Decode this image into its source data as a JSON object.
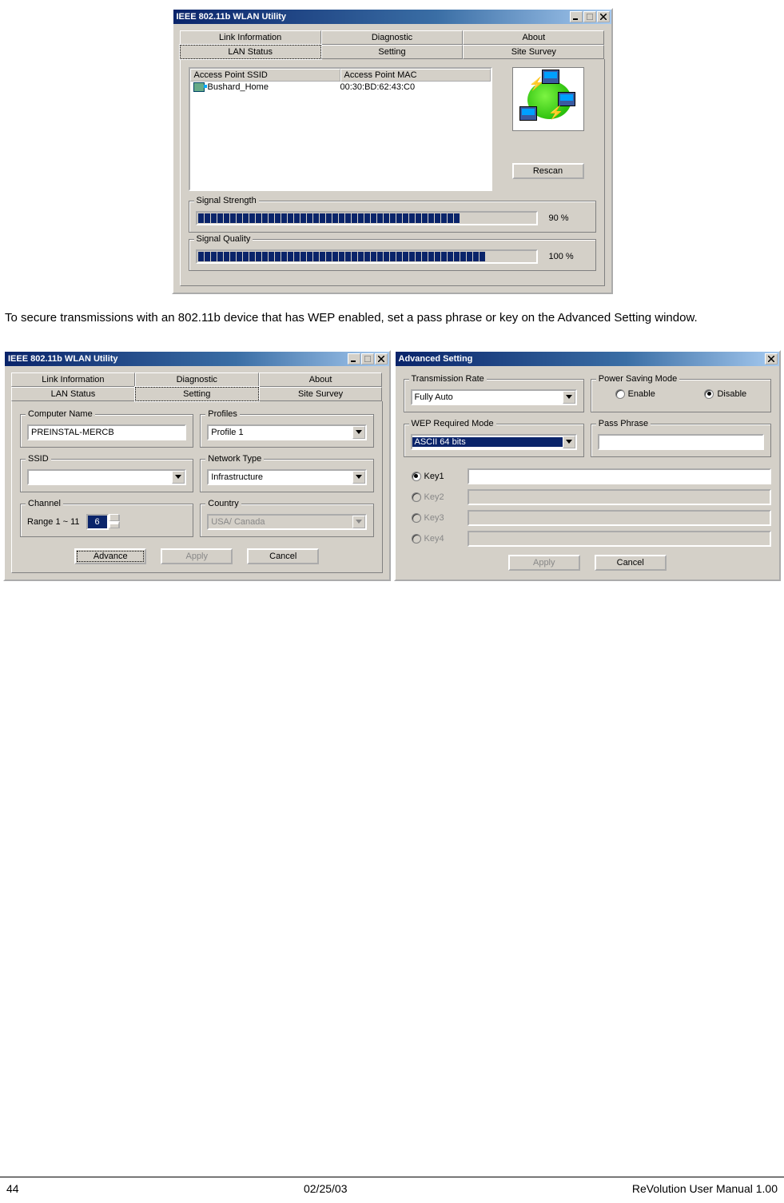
{
  "window1": {
    "title": "IEEE 802.11b WLAN Utility",
    "tabs_back": [
      "Link Information",
      "Diagnostic",
      "About"
    ],
    "tabs_front": [
      "LAN Status",
      "Setting",
      "Site Survey"
    ],
    "active_tab": "LAN Status",
    "list": {
      "col_ssid": "Access Point SSID",
      "col_mac": "Access Point MAC",
      "rows": [
        {
          "ssid": "Bushard_Home",
          "mac": "00:30:BD:62:43:C0"
        }
      ]
    },
    "rescan": "Rescan",
    "signal_strength": {
      "label": "Signal Strength",
      "percent": 90,
      "text": "90 %"
    },
    "signal_quality": {
      "label": "Signal Quality",
      "percent": 100,
      "text": "100 %"
    }
  },
  "paragraph": "To secure transmissions with an 802.11b device that has WEP enabled, set a pass phrase or key on the Advanced Setting window.",
  "window2": {
    "title": "IEEE 802.11b WLAN Utility",
    "tabs_back": [
      "Link Information",
      "Diagnostic",
      "About"
    ],
    "tabs_front": [
      "LAN Status",
      "Setting",
      "Site Survey"
    ],
    "active_tab": "Setting",
    "computer_name": {
      "label": "Computer Name",
      "value": "PREINSTAL-MERCB"
    },
    "profiles": {
      "label": "Profiles",
      "value": "Profile 1"
    },
    "ssid": {
      "label": "SSID",
      "value": ""
    },
    "network_type": {
      "label": "Network Type",
      "value": "Infrastructure"
    },
    "channel": {
      "label": "Channel",
      "range": "Range 1 ~ 11",
      "value": "6"
    },
    "country": {
      "label": "Country",
      "value": "USA/ Canada"
    },
    "buttons": {
      "advance": "Advance",
      "apply": "Apply",
      "cancel": "Cancel"
    }
  },
  "window3": {
    "title": "Advanced Setting",
    "trans_rate": {
      "label": "Transmission Rate",
      "value": "Fully Auto"
    },
    "power_save": {
      "label": "Power Saving Mode",
      "enable": "Enable",
      "disable": "Disable",
      "selected": "disable"
    },
    "wep_mode": {
      "label": "WEP Required Mode",
      "value": "ASCII 64 bits"
    },
    "pass_phrase": {
      "label": "Pass Phrase",
      "value": ""
    },
    "keys": {
      "labels": [
        "Key1",
        "Key2",
        "Key3",
        "Key4"
      ],
      "selected_index": 0
    },
    "buttons": {
      "apply": "Apply",
      "cancel": "Cancel"
    }
  },
  "footer": {
    "page": "44",
    "date": "02/25/03",
    "manual": "ReVolution User Manual 1.00"
  }
}
